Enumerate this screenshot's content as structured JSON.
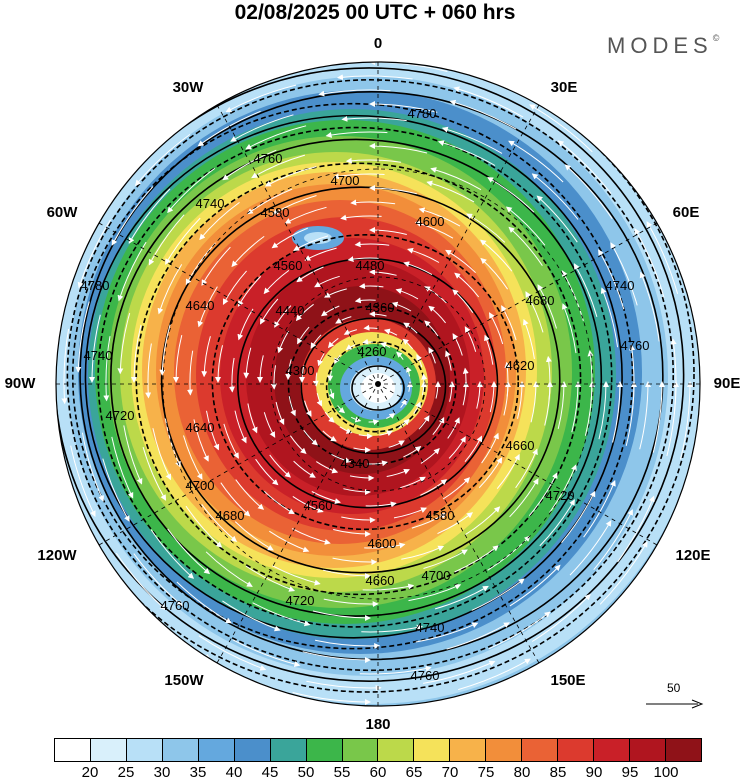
{
  "title": "02/08/2025  00 UTC  + 060 hrs",
  "brand": {
    "text": "MODES",
    "mark": "©"
  },
  "longitude_labels": {
    "north": "0",
    "n30e": "30E",
    "n60e": "60E",
    "east": "90E",
    "s120e": "120E",
    "s150e": "150E",
    "south": "180",
    "s150w": "150W",
    "s120w": "120W",
    "west": "90W",
    "n60w": "60W",
    "n30w": "30W"
  },
  "reference_vector": {
    "value": "50",
    "icon": "arrow-right-icon"
  },
  "colorbar": {
    "colors": [
      "#ffffff",
      "#d9f0fb",
      "#b8e0f7",
      "#8ec6ea",
      "#64a8de",
      "#4b8fcb",
      "#3aa59a",
      "#3cb64a",
      "#79c74a",
      "#bcd94a",
      "#f5e25a",
      "#f7b24a",
      "#f28e3a",
      "#ea6235",
      "#dc3a2e",
      "#c92028",
      "#b0151f",
      "#8f1218"
    ],
    "ticks": [
      "20",
      "25",
      "30",
      "35",
      "40",
      "45",
      "50",
      "55",
      "60",
      "65",
      "70",
      "75",
      "80",
      "85",
      "90",
      "95",
      "100"
    ]
  },
  "contours": {
    "labels": [
      "4780",
      "4760",
      "4740",
      "4700",
      "4680",
      "4660",
      "4640",
      "4620",
      "4600",
      "4580",
      "4560",
      "4480",
      "4440",
      "4360",
      "4340",
      "4300",
      "4260",
      "4720"
    ],
    "rings": [
      4260,
      4300,
      4340,
      4360,
      4440,
      4480,
      4560,
      4600,
      4640,
      4660,
      4680,
      4700,
      4720,
      4740,
      4760,
      4780
    ]
  }
}
